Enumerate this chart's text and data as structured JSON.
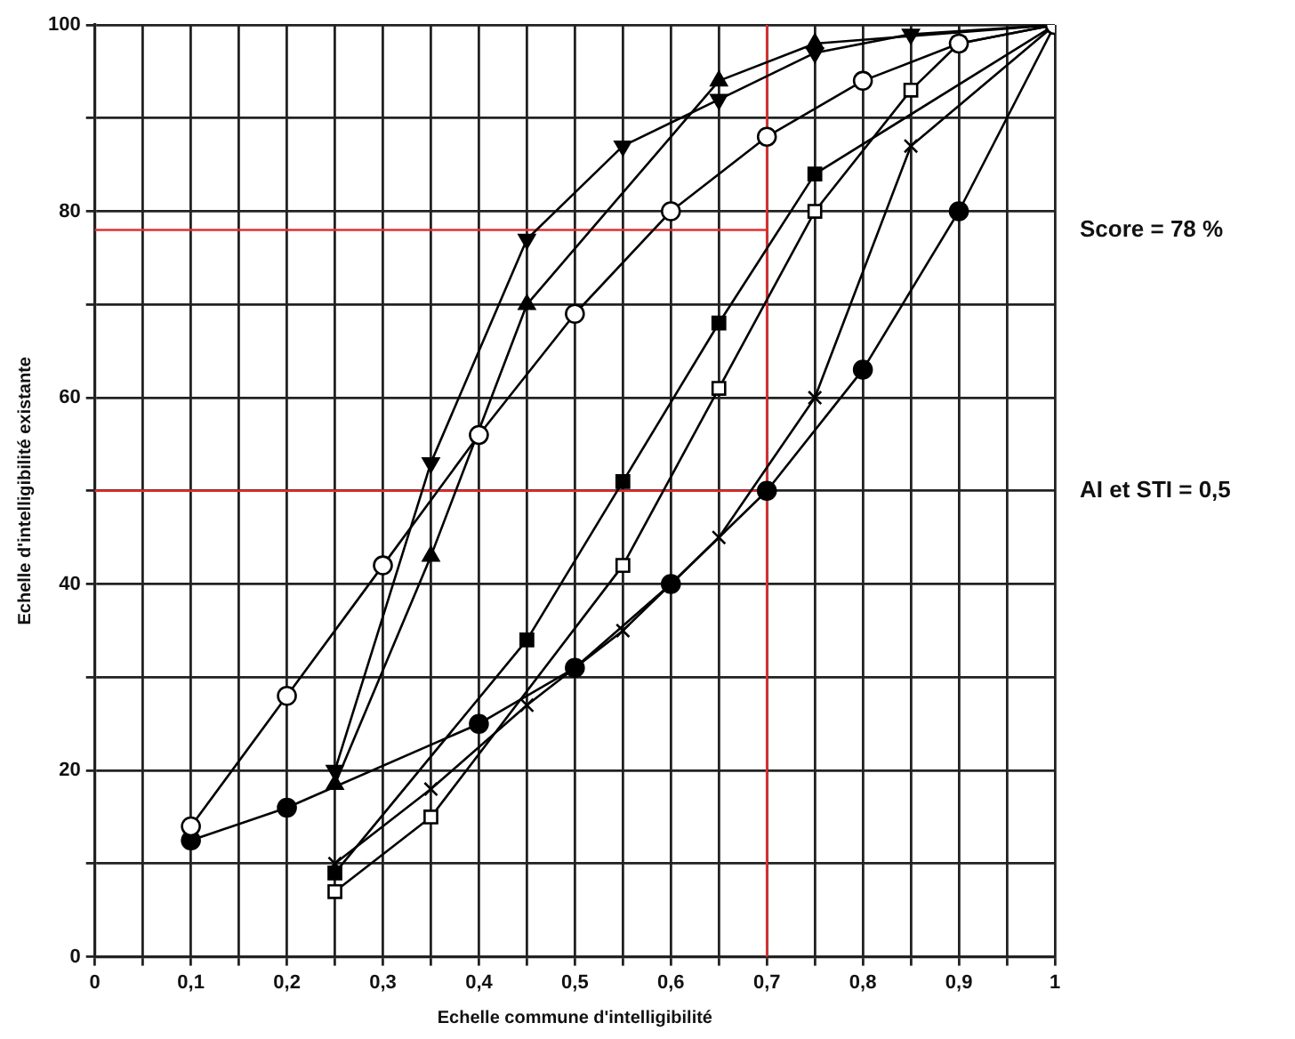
{
  "chart_data": {
    "type": "line",
    "xlabel": "Echelle commune d'intelligibilité",
    "ylabel": "Echelle d'intelligibilité existante",
    "xlim": [
      0,
      1
    ],
    "ylim": [
      0,
      100
    ],
    "xticks": [
      {
        "value": 0,
        "label": "0"
      },
      {
        "value": 0.05,
        "label": null
      },
      {
        "value": 0.1,
        "label": "0,1"
      },
      {
        "value": 0.15,
        "label": null
      },
      {
        "value": 0.2,
        "label": "0,2"
      },
      {
        "value": 0.25,
        "label": null
      },
      {
        "value": 0.3,
        "label": "0,3"
      },
      {
        "value": 0.35,
        "label": null
      },
      {
        "value": 0.4,
        "label": "0,4"
      },
      {
        "value": 0.45,
        "label": null
      },
      {
        "value": 0.5,
        "label": "0,5"
      },
      {
        "value": 0.55,
        "label": null
      },
      {
        "value": 0.6,
        "label": "0,6"
      },
      {
        "value": 0.65,
        "label": null
      },
      {
        "value": 0.7,
        "label": "0,7"
      },
      {
        "value": 0.75,
        "label": null
      },
      {
        "value": 0.8,
        "label": "0,8"
      },
      {
        "value": 0.85,
        "label": null
      },
      {
        "value": 0.9,
        "label": "0,9"
      },
      {
        "value": 0.95,
        "label": null
      },
      {
        "value": 1,
        "label": "1"
      }
    ],
    "yticks": [
      0,
      {
        "value": 10,
        "label": null
      },
      20,
      {
        "value": 30,
        "label": null
      },
      40,
      {
        "value": 50,
        "label": null
      },
      60,
      {
        "value": 70,
        "label": null
      },
      80,
      {
        "value": 90,
        "label": null
      },
      100
    ],
    "grid": true,
    "legend": false,
    "line_style": "solid",
    "series": [
      {
        "color": "#000000",
        "marker": "circle-open",
        "x": [
          0.1,
          0.2,
          0.3,
          0.4,
          0.5,
          0.6,
          0.7,
          0.8,
          0.9,
          1
        ],
        "values": [
          14,
          28,
          42,
          56,
          69,
          80,
          88,
          94,
          98,
          100
        ]
      },
      {
        "color": "#000000",
        "marker": "circle",
        "x": [
          0.1,
          0.2,
          0.4,
          0.5,
          0.6,
          0.7,
          0.8,
          0.9,
          1
        ],
        "values": [
          12.5,
          16,
          25,
          31,
          40,
          50,
          63,
          80,
          100
        ]
      },
      {
        "color": "#000000",
        "marker": "triangle-down",
        "x": [
          0.25,
          0.35,
          0.45,
          0.55,
          0.65,
          0.75,
          0.85,
          1
        ],
        "values": [
          20,
          53,
          77,
          87,
          92,
          97,
          99,
          100
        ]
      },
      {
        "color": "#000000",
        "marker": "triangle",
        "x": [
          0.25,
          0.35,
          0.45,
          0.65,
          0.75,
          1
        ],
        "values": [
          18.5,
          43,
          70,
          94,
          98,
          100
        ]
      },
      {
        "color": "#000000",
        "marker": "square",
        "x": [
          0.25,
          0.45,
          0.55,
          0.65,
          0.75,
          1
        ],
        "values": [
          9,
          34,
          51,
          68,
          84,
          100
        ]
      },
      {
        "color": "#000000",
        "marker": "square-open",
        "x": [
          0.25,
          0.35,
          0.55,
          0.65,
          0.75,
          0.85,
          0.9,
          1
        ],
        "values": [
          7,
          15,
          42,
          61,
          80,
          93,
          98,
          100
        ]
      },
      {
        "color": "#000000",
        "marker": "cross",
        "x": [
          0.25,
          0.35,
          0.45,
          0.55,
          0.65,
          0.75,
          0.85,
          1
        ],
        "values": [
          10,
          18,
          27,
          35,
          45,
          60,
          87,
          100
        ]
      }
    ],
    "ref_lines": [
      {
        "axis": "x",
        "value": 0.7,
        "color": "#e03030"
      },
      {
        "axis": "y",
        "value": 78,
        "color": "#e03030"
      },
      {
        "axis": "y",
        "value": 50,
        "color": "#e03030"
      }
    ],
    "annotations": [
      "Score = 78 %",
      "AI et STI = 0,5"
    ]
  }
}
